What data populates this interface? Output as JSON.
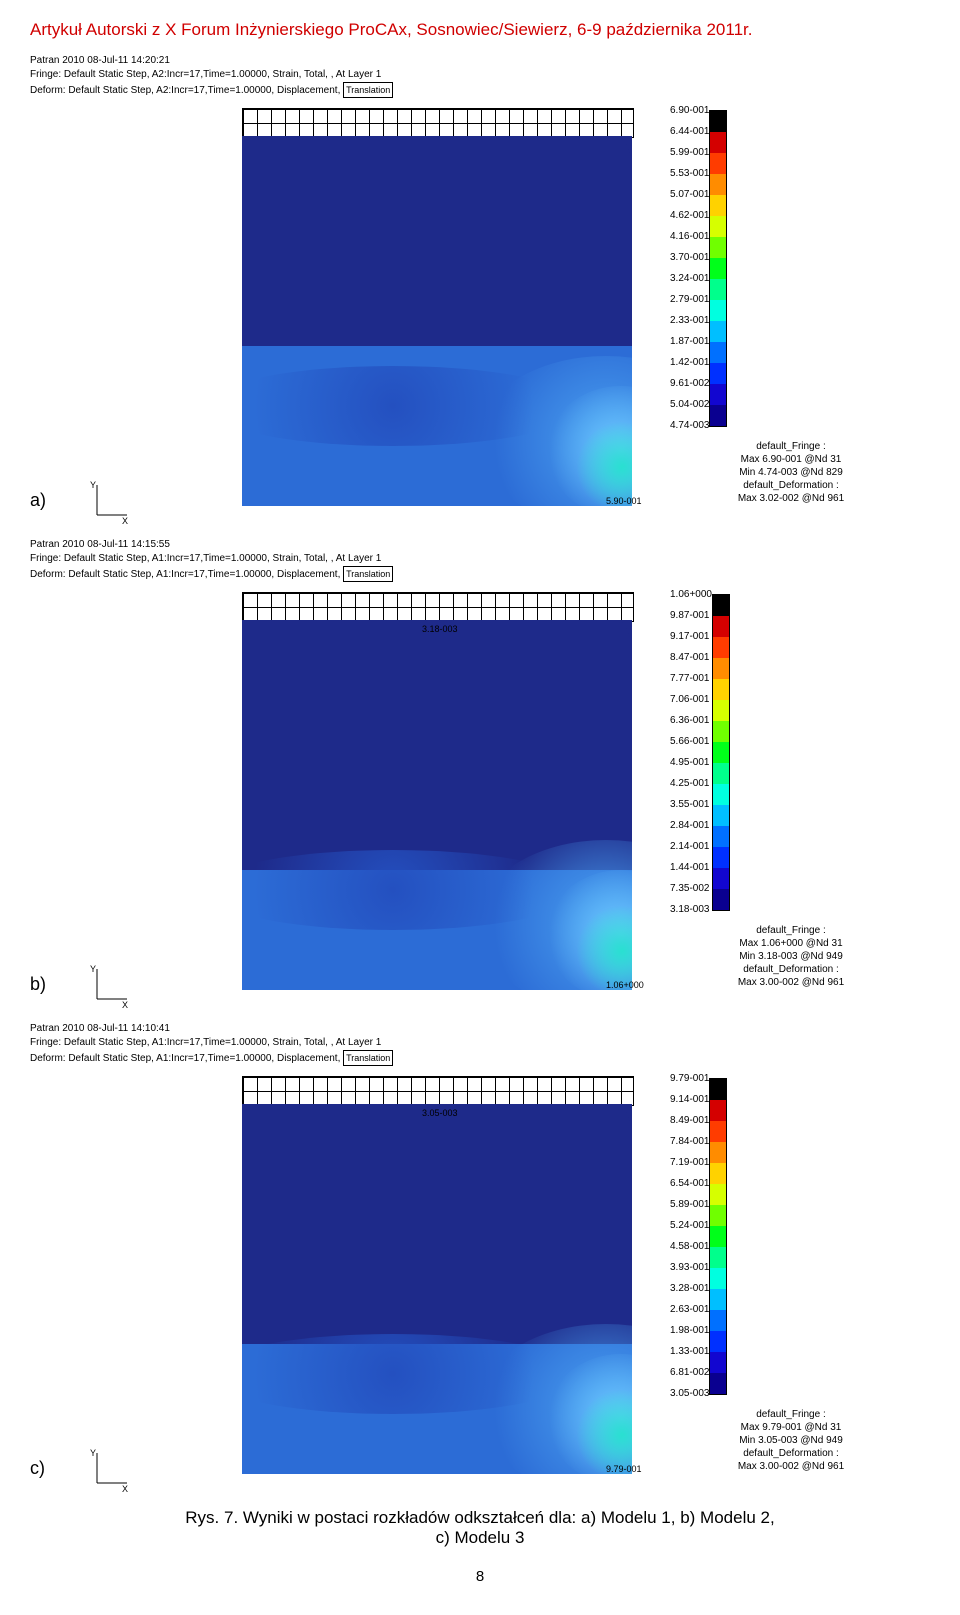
{
  "header": "Artykuł Autorski z X Forum Inżynierskiego ProCAx, Sosnowiec/Siewierz, 6-9 października 2011r.",
  "caption_line1": "Rys. 7. Wyniki w postaci rozkładów odkształceń dla: a) Modelu 1, b) Modelu 2,",
  "caption_line2": "c) Modelu 3",
  "page_number": "8",
  "translation_label": "Translation",
  "axis_x": "X",
  "axis_y": "Y",
  "figures": [
    {
      "letter": "a)",
      "meta1": "Patran 2010 08-Jul-11 14:20:21",
      "meta2": "Fringe: Default Static Step, A2:Incr=17,Time=1.00000, Strain, Total, , At Layer 1",
      "meta3": "Deform: Default Static Step, A2:Incr=17,Time=1.00000, Displacement,",
      "corner_annot": "5.90-001",
      "top_annot": "",
      "cbar_labels": [
        "6.90-001",
        "6.44-001",
        "5.99-001",
        "5.53-001",
        "5.07-001",
        "4.62-001",
        "4.16-001",
        "3.70-001",
        "3.24-001",
        "2.79-001",
        "2.33-001",
        "1.87-001",
        "1.42-001",
        "9.61-002",
        "5.04-002",
        "4.74-003"
      ],
      "cbar_colors": [
        "#000000",
        "#d40000",
        "#ff3c00",
        "#ff8c00",
        "#ffd200",
        "#d6ff00",
        "#70ff00",
        "#00ff1a",
        "#00ff8c",
        "#00ffe0",
        "#00bfff",
        "#0070ff",
        "#0030ff",
        "#1206d0",
        "#0a0090"
      ],
      "legend_sub": [
        "default_Fringe :",
        "Max 6.90-001 @Nd 31",
        "Min 4.74-003 @Nd 829",
        "default_Deformation :",
        "Max 3.02-002 @Nd 961"
      ],
      "lower_band_h": 160
    },
    {
      "letter": "b)",
      "meta1": "Patran 2010 08-Jul-11 14:15:55",
      "meta2": "Fringe: Default Static Step, A1:Incr=17,Time=1.00000, Strain, Total, , At Layer 1",
      "meta3": "Deform: Default Static Step, A1:Incr=17,Time=1.00000, Displacement,",
      "corner_annot": "1.06+000",
      "top_annot": "3.18-003",
      "cbar_labels": [
        "1.06+000",
        "9.87-001",
        "9.17-001",
        "8.47-001",
        "7.77-001",
        "7.06-001",
        "6.36-001",
        "5.66-001",
        "4.95-001",
        "4.25-001",
        "3.55-001",
        "2.84-001",
        "2.14-001",
        "1.44-001",
        "7.35-002",
        "3.18-003"
      ],
      "cbar_colors": [
        "#000000",
        "#d40000",
        "#ff3c00",
        "#ff8c00",
        "#ffd200",
        "#d6ff00",
        "#70ff00",
        "#00ff1a",
        "#00ff8c",
        "#00ffe0",
        "#00bfff",
        "#0070ff",
        "#0030ff",
        "#1206d0",
        "#0a0090"
      ],
      "legend_sub": [
        "default_Fringe :",
        "Max 1.06+000 @Nd 31",
        "Min 3.18-003 @Nd 949",
        "default_Deformation :",
        "Max 3.00-002 @Nd 961"
      ],
      "lower_band_h": 120
    },
    {
      "letter": "c)",
      "meta1": "Patran 2010 08-Jul-11 14:10:41",
      "meta2": "Fringe: Default Static Step, A1:Incr=17,Time=1.00000, Strain, Total, , At Layer 1",
      "meta3": "Deform: Default Static Step, A1:Incr=17,Time=1.00000, Displacement,",
      "corner_annot": "9.79-001",
      "top_annot": "3.05-003",
      "cbar_labels": [
        "9.79-001",
        "9.14-001",
        "8.49-001",
        "7.84-001",
        "7.19-001",
        "6.54-001",
        "5.89-001",
        "5.24-001",
        "4.58-001",
        "3.93-001",
        "3.28-001",
        "2.63-001",
        "1.98-001",
        "1.33-001",
        "6.81-002",
        "3.05-003"
      ],
      "cbar_colors": [
        "#000000",
        "#d40000",
        "#ff3c00",
        "#ff8c00",
        "#ffd200",
        "#d6ff00",
        "#70ff00",
        "#00ff1a",
        "#00ff8c",
        "#00ffe0",
        "#00bfff",
        "#0070ff",
        "#0030ff",
        "#1206d0",
        "#0a0090"
      ],
      "legend_sub": [
        "default_Fringe :",
        "Max 9.79-001 @Nd 31",
        "Min 3.05-003 @Nd 949",
        "default_Deformation :",
        "Max 3.00-002 @Nd 961"
      ],
      "lower_band_h": 130
    }
  ]
}
